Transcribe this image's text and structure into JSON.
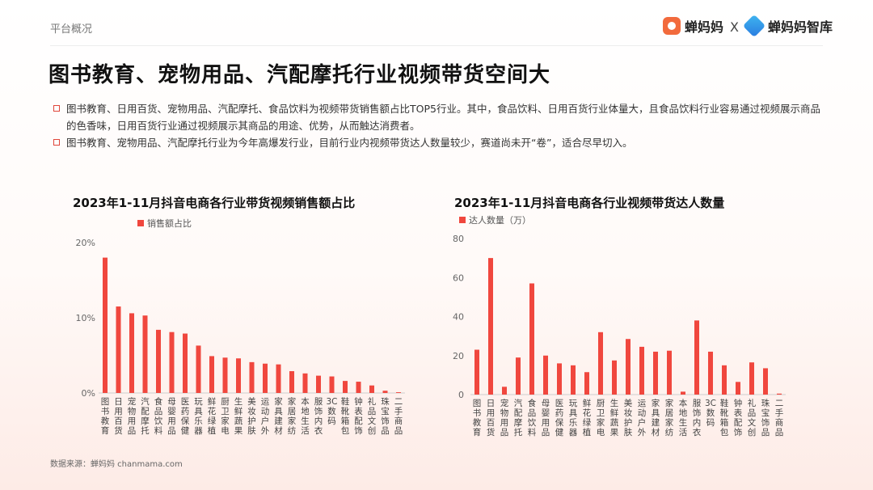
{
  "header": {
    "section": "平台概况",
    "brand_a": "蝉妈妈",
    "separator": "X",
    "brand_b": "蝉妈妈智库"
  },
  "title": "图书教育、宠物用品、汽配摩托行业视频带货空间大",
  "bullets": [
    "图书教育、日用百货、宠物用品、汽配摩托、食品饮料为视频带货销售额占比TOP5行业。其中，食品饮料、日用百货行业体量大，且食品饮料行业容易通过视频展示商品的色香味，日用百货行业通过视频展示其商品的用途、优势，从而触达消费者。",
    "图书教育、宠物用品、汽配摩托行业为今年高爆发行业，目前行业内视频带货达人数量较少，赛道尚未开“卷”，适合尽早切入。"
  ],
  "source": "数据来源：蝉妈妈 chanmama.com",
  "colors": {
    "bar": "#f0473e",
    "accent": "#e0463b"
  },
  "chart_data": [
    {
      "type": "bar",
      "title": "2023年1-11月抖音电商各行业带货视频销售额占比",
      "series": [
        {
          "name": "销售额占比",
          "values": [
            18.0,
            11.5,
            10.6,
            10.3,
            8.4,
            8.1,
            7.9,
            6.3,
            4.9,
            4.7,
            4.6,
            4.1,
            3.9,
            3.8,
            2.9,
            2.6,
            2.3,
            2.2,
            1.6,
            1.5,
            1.0,
            0.3,
            0.1
          ]
        }
      ],
      "categories": [
        "图书教育",
        "日用百货",
        "宠物用品",
        "汽配摩托",
        "食品饮料",
        "母婴用品",
        "医药保健",
        "玩具乐器",
        "鲜花绿植",
        "厨卫家电",
        "生鲜蔬果",
        "美妆护肤",
        "运动户外",
        "家具建材",
        "家居家纺",
        "本地生活",
        "服饰内衣",
        "3C数码",
        "鞋靴箱包",
        "钟表配饰",
        "礼品文创",
        "珠宝饰品",
        "二手商品"
      ],
      "yticks": [
        "0%",
        "10%",
        "20%"
      ],
      "ylim": [
        0,
        20
      ],
      "grid": false,
      "legend": "top-left"
    },
    {
      "type": "bar",
      "title": "2023年1-11月抖音电商各行业视频带货达人数量",
      "series": [
        {
          "name": "达人数量（万）",
          "values": [
            23,
            70,
            4,
            19,
            57,
            20,
            16,
            15,
            11.5,
            32,
            17.5,
            28.5,
            24.5,
            22,
            22.5,
            1.5,
            38,
            22,
            15,
            6.5,
            16.5,
            13.5,
            0.5
          ]
        }
      ],
      "categories": [
        "图书教育",
        "日用百货",
        "宠物用品",
        "汽配摩托",
        "食品饮料",
        "母婴用品",
        "医药保健",
        "玩具乐器",
        "鲜花绿植",
        "厨卫家电",
        "生鲜蔬果",
        "美妆护肤",
        "运动户外",
        "家具建材",
        "家居家纺",
        "本地生活",
        "服饰内衣",
        "3C数码",
        "鞋靴箱包",
        "钟表配饰",
        "礼品文创",
        "珠宝饰品",
        "二手商品"
      ],
      "yticks": [
        "0",
        "20",
        "40",
        "60",
        "80"
      ],
      "ylim": [
        0,
        80
      ],
      "grid": false,
      "legend": "top-left"
    }
  ]
}
